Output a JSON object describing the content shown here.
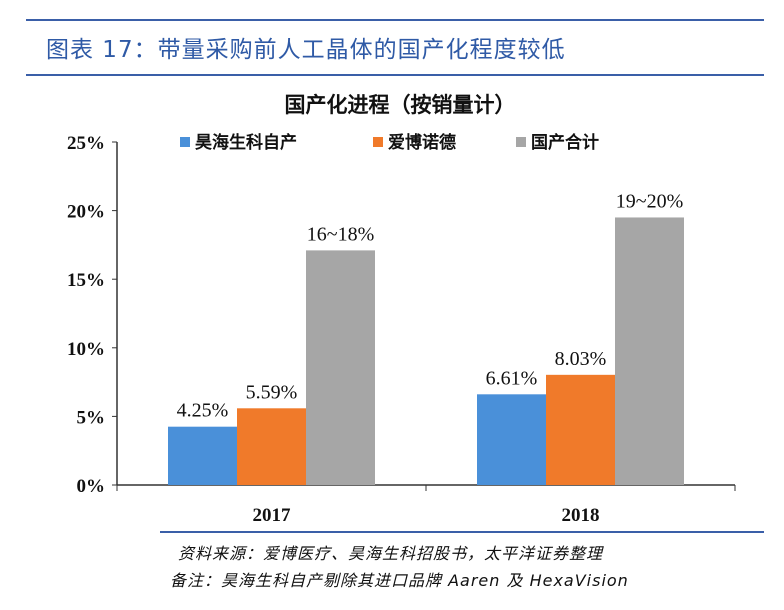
{
  "figure_title": "图表 17：带量采购前人工晶体的国产化程度较低",
  "source": "资料来源：爱博医疗、昊海生科招股书，太平洋证券整理",
  "note": "备注：昊海生科自产剔除其进口品牌 Aaren 及 HexaVision",
  "chart_data": {
    "type": "bar",
    "title": "国产化进程（按销量计）",
    "categories": [
      "2017",
      "2018"
    ],
    "series": [
      {
        "name": "昊海生科自产",
        "color": "#4a90d9",
        "values": [
          4.25,
          6.61
        ],
        "labels": [
          "4.25%",
          "6.61%"
        ]
      },
      {
        "name": "爱博诺德",
        "color": "#f07a2a",
        "values": [
          5.59,
          8.03
        ],
        "labels": [
          "5.59%",
          "8.03%"
        ]
      },
      {
        "name": "国产合计",
        "color": "#a6a6a6",
        "values": [
          17.1,
          19.5
        ],
        "labels": [
          "16~18%",
          "19~20%"
        ]
      }
    ],
    "ylim": [
      0,
      25
    ],
    "yticks": [
      "0%",
      "5%",
      "10%",
      "15%",
      "20%",
      "25%"
    ],
    "legend": "top",
    "grid": false
  }
}
